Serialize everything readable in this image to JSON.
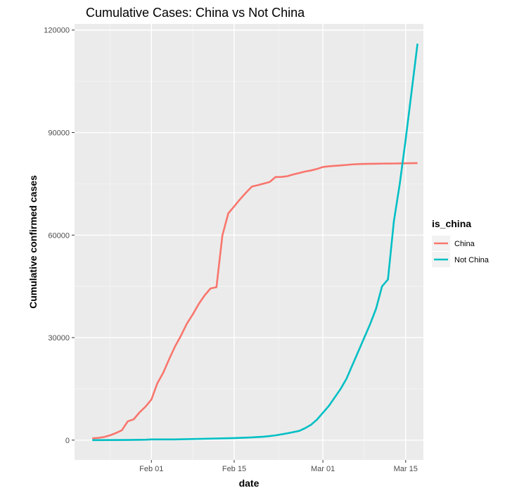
{
  "chart_data": {
    "type": "line",
    "title": "Cumulative Cases: China vs Not China",
    "xlabel": "date",
    "ylabel": "Cumulative confirmed cases",
    "x_ticks": [
      "Feb 01",
      "Feb 15",
      "Mar 01",
      "Mar 15"
    ],
    "y_ticks": [
      "0",
      "30000",
      "60000",
      "90000",
      "120000"
    ],
    "ylim": [
      -5800,
      121800
    ],
    "xlim": [
      "2020-01-19",
      "2020-03-18"
    ],
    "grid": true,
    "legend": {
      "title": "is_china",
      "position": "right",
      "entries": [
        "China",
        "Not China"
      ]
    },
    "series": [
      {
        "name": "China",
        "color": "#F8766D",
        "points": [
          [
            "2020-01-22",
            548
          ],
          [
            "2020-01-23",
            643
          ],
          [
            "2020-01-24",
            920
          ],
          [
            "2020-01-25",
            1406
          ],
          [
            "2020-01-26",
            2075
          ],
          [
            "2020-01-27",
            2877
          ],
          [
            "2020-01-28",
            5509
          ],
          [
            "2020-01-29",
            6087
          ],
          [
            "2020-01-30",
            8141
          ],
          [
            "2020-01-31",
            9802
          ],
          [
            "2020-02-01",
            11891
          ],
          [
            "2020-02-02",
            16630
          ],
          [
            "2020-02-03",
            19716
          ],
          [
            "2020-02-04",
            23707
          ],
          [
            "2020-02-05",
            27440
          ],
          [
            "2020-02-06",
            30587
          ],
          [
            "2020-02-07",
            34110
          ],
          [
            "2020-02-08",
            36814
          ],
          [
            "2020-02-09",
            39829
          ],
          [
            "2020-02-10",
            42354
          ],
          [
            "2020-02-11",
            44386
          ],
          [
            "2020-02-12",
            44759
          ],
          [
            "2020-02-13",
            59895
          ],
          [
            "2020-02-14",
            66358
          ],
          [
            "2020-02-15",
            68413
          ],
          [
            "2020-02-16",
            70513
          ],
          [
            "2020-02-17",
            72434
          ],
          [
            "2020-02-18",
            74211
          ],
          [
            "2020-02-19",
            74619
          ],
          [
            "2020-02-20",
            75077
          ],
          [
            "2020-02-21",
            75550
          ],
          [
            "2020-02-22",
            77001
          ],
          [
            "2020-02-23",
            77022
          ],
          [
            "2020-02-24",
            77241
          ],
          [
            "2020-02-25",
            77754
          ],
          [
            "2020-02-26",
            78166
          ],
          [
            "2020-02-27",
            78600
          ],
          [
            "2020-02-28",
            78928
          ],
          [
            "2020-02-29",
            79356
          ],
          [
            "2020-03-01",
            79932
          ],
          [
            "2020-03-02",
            80136
          ],
          [
            "2020-03-03",
            80261
          ],
          [
            "2020-03-04",
            80386
          ],
          [
            "2020-03-05",
            80537
          ],
          [
            "2020-03-06",
            80690
          ],
          [
            "2020-03-07",
            80770
          ],
          [
            "2020-03-08",
            80823
          ],
          [
            "2020-03-09",
            80860
          ],
          [
            "2020-03-10",
            80887
          ],
          [
            "2020-03-11",
            80921
          ],
          [
            "2020-03-12",
            80932
          ],
          [
            "2020-03-13",
            80945
          ],
          [
            "2020-03-14",
            80977
          ],
          [
            "2020-03-15",
            81003
          ],
          [
            "2020-03-16",
            81033
          ],
          [
            "2020-03-17",
            81058
          ]
        ]
      },
      {
        "name": "Not China",
        "color": "#00BFC4",
        "points": [
          [
            "2020-01-22",
            7
          ],
          [
            "2020-01-25",
            26
          ],
          [
            "2020-01-28",
            57
          ],
          [
            "2020-01-31",
            130
          ],
          [
            "2020-02-01",
            200
          ],
          [
            "2020-02-05",
            200
          ],
          [
            "2020-02-10",
            400
          ],
          [
            "2020-02-15",
            600
          ],
          [
            "2020-02-18",
            800
          ],
          [
            "2020-02-20",
            1000
          ],
          [
            "2020-02-22",
            1400
          ],
          [
            "2020-02-24",
            2000
          ],
          [
            "2020-02-26",
            2700
          ],
          [
            "2020-02-27",
            3500
          ],
          [
            "2020-02-28",
            4500
          ],
          [
            "2020-02-29",
            6000
          ],
          [
            "2020-03-01",
            8000
          ],
          [
            "2020-03-02",
            10000
          ],
          [
            "2020-03-03",
            12500
          ],
          [
            "2020-03-04",
            15000
          ],
          [
            "2020-03-05",
            18000
          ],
          [
            "2020-03-06",
            22000
          ],
          [
            "2020-03-07",
            26000
          ],
          [
            "2020-03-08",
            30000
          ],
          [
            "2020-03-09",
            34000
          ],
          [
            "2020-03-10",
            38500
          ],
          [
            "2020-03-11",
            45000
          ],
          [
            "2020-03-12",
            47000
          ],
          [
            "2020-03-13",
            64000
          ],
          [
            "2020-03-14",
            75000
          ],
          [
            "2020-03-15",
            88000
          ],
          [
            "2020-03-16",
            102000
          ],
          [
            "2020-03-17",
            116000
          ]
        ]
      }
    ]
  }
}
